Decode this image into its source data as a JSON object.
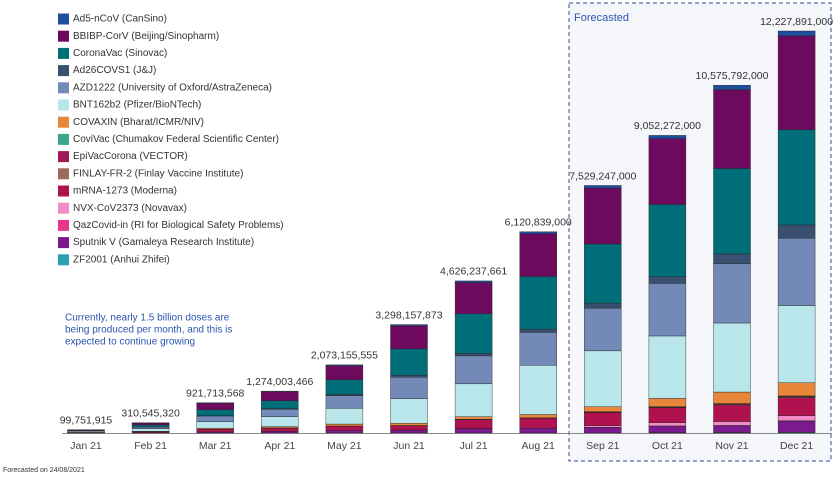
{
  "chart_data": {
    "type": "stacked_bar",
    "annotation": [
      "Currently, nearly 1.5 billion doses are",
      "being produced per month, and this is",
      "expected to continue growing"
    ],
    "forecast_label": "Forecasted",
    "footnote": "Forecasted on 24/08/2021",
    "categories": [
      "Jan 21",
      "Feb 21",
      "Mar 21",
      "Apr 21",
      "May 21",
      "Jun 21",
      "Jul 21",
      "Aug 21",
      "Sep 21",
      "Oct 21",
      "Nov 21",
      "Dec 21"
    ],
    "totals": [
      99751915,
      310545320,
      921713568,
      1274003466,
      2073155555,
      3298157873,
      4626237661,
      6120839000,
      7529247000,
      9052272000,
      10575792000,
      12227891000
    ],
    "value_labels": [
      "99,751,915",
      "310,545,320",
      "921,713,568",
      "1,274,003,466",
      "2,073,155,555",
      "3,298,157,873",
      "4,626,237,661",
      "6,120,839,000",
      "7,529,247,000",
      "9,052,272,000",
      "10,575,792,000",
      "12,227,891,000"
    ],
    "series": [
      {
        "name": "Ad5-nCoV (CanSino)",
        "color": "#1f4e9e",
        "values": [
          2000000,
          5000000,
          15000000,
          20000000,
          30000000,
          40000000,
          50000000,
          60000000,
          80000000,
          100000000,
          130000000,
          150000000
        ]
      },
      {
        "name": "BBIBP-CorV (Beijing/Sinopharm)",
        "color": "#6e0a5e",
        "values": [
          20000000,
          60000000,
          200000000,
          270000000,
          420000000,
          700000000,
          950000000,
          1300000000,
          1700000000,
          2000000000,
          2400000000,
          2850000000
        ]
      },
      {
        "name": "CoronaVac (Sinovac)",
        "color": "#006e78",
        "values": [
          15000000,
          60000000,
          180000000,
          240000000,
          450000000,
          800000000,
          1200000000,
          1600000000,
          1800000000,
          2200000000,
          2600000000,
          2900000000
        ]
      },
      {
        "name": "Ad26COVS1 (J&J)",
        "color": "#3a5070",
        "values": [
          0,
          2000000,
          10000000,
          20000000,
          40000000,
          60000000,
          80000000,
          100000000,
          150000000,
          200000000,
          300000000,
          400000000
        ]
      },
      {
        "name": "AZD1222 (University of Oxford/AstraZeneca)",
        "color": "#7389b8",
        "values": [
          10000000,
          50000000,
          170000000,
          230000000,
          380000000,
          650000000,
          850000000,
          1000000000,
          1300000000,
          1600000000,
          1800000000,
          2050000000
        ]
      },
      {
        "name": "BNT162b2 (Pfizer/BioNTech)",
        "color": "#b8e6ea",
        "values": [
          35000000,
          80000000,
          200000000,
          300000000,
          480000000,
          750000000,
          1000000000,
          1500000000,
          1700000000,
          1900000000,
          2100000000,
          2350000000
        ]
      },
      {
        "name": "COVAXIN (Bharat/ICMR/NIV)",
        "color": "#e8873a",
        "values": [
          1000000,
          10000000,
          30000000,
          40000000,
          60000000,
          70000000,
          80000000,
          100000000,
          150000000,
          250000000,
          350000000,
          400000000
        ]
      },
      {
        "name": "CoviVac (Chumakov Federal Scientific Center)",
        "color": "#3aa68a",
        "values": [
          0,
          0,
          1000000,
          1000000,
          1000000,
          2000000,
          2000000,
          3000000,
          5000000,
          7000000,
          8000000,
          10000000
        ]
      },
      {
        "name": "EpiVacCorona (VECTOR)",
        "color": "#a0175a",
        "values": [
          1000000,
          1000000,
          2000000,
          2000000,
          2000000,
          3000000,
          3000000,
          4000000,
          10000000,
          15000000,
          18000000,
          20000000
        ]
      },
      {
        "name": "FINLAY-FR-2 (Finlay Vaccine Institute)",
        "color": "#9c6b5a",
        "values": [
          0,
          0,
          1000000,
          1000000,
          2000000,
          3000000,
          4000000,
          5000000,
          10000000,
          15000000,
          20000000,
          25000000
        ]
      },
      {
        "name": "mRNA-1273 (Moderna)",
        "color": "#b0124f",
        "values": [
          10000000,
          30000000,
          80000000,
          100000000,
          130000000,
          130000000,
          270000000,
          300000000,
          400000000,
          450000000,
          500000000,
          550000000
        ]
      },
      {
        "name": "NVX-CoV2373 (Novavax)",
        "color": "#f08cc8",
        "values": [
          0,
          0,
          0,
          0,
          0,
          0,
          0,
          0,
          50000000,
          100000000,
          120000000,
          150000000
        ]
      },
      {
        "name": "QazCovid-in (RI for Biological Safety Problems)",
        "color": "#e8388c",
        "values": [
          0,
          0,
          0,
          0,
          0,
          0,
          1000000,
          1000000,
          4000000,
          5000000,
          5000000,
          8000000
        ]
      },
      {
        "name": "Sputnik V (Gamaleya Research Institute)",
        "color": "#7a1a8c",
        "values": [
          6000000,
          12000000,
          33000000,
          50000000,
          78000000,
          90000000,
          136000000,
          148000000,
          170000000,
          200000000,
          210000000,
          345000000
        ]
      },
      {
        "name": "ZF2001 (Anhui Zhifei)",
        "color": "#2aa0b0",
        "values": [
          0,
          0,
          0,
          0,
          0,
          0,
          0,
          0,
          0,
          10000000,
          15000000,
          20000000
        ]
      }
    ]
  }
}
